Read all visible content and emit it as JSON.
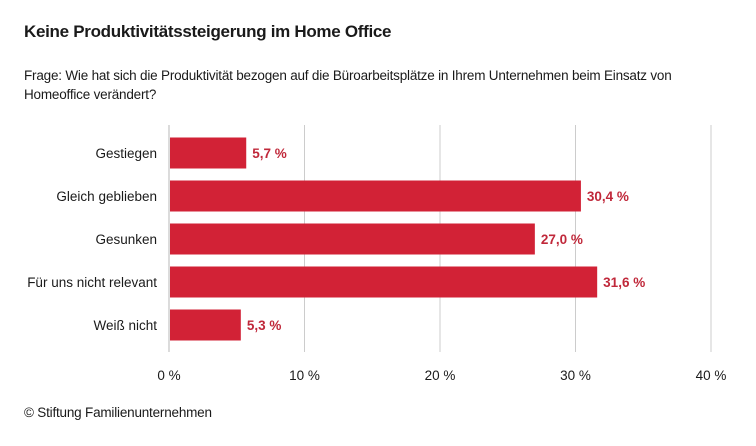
{
  "header": {
    "title": "Keine Produktivitätssteigerung im Home Office",
    "subtitle": "Frage: Wie hat sich die Produktivität bezogen auf die Büroarbeitsplätze in Ihrem Unternehmen beim Einsatz von Homeoffice verändert?"
  },
  "footer": {
    "source": "© Stiftung Familienunternehmen"
  },
  "colors": {
    "bar": "#d22236",
    "value_label": "#c0283a",
    "grid": "#cccccc"
  },
  "chart_data": {
    "type": "bar",
    "orientation": "horizontal",
    "title": "Keine Produktivitätssteigerung im Home Office",
    "categories": [
      "Gestiegen",
      "Gleich geblieben",
      "Gesunken",
      "Für uns nicht relevant",
      "Weiß nicht"
    ],
    "values": [
      5.7,
      30.4,
      27.0,
      31.6,
      5.3
    ],
    "value_labels": [
      "5,7 %",
      "30,4 %",
      "27,0 %",
      "31,6 %",
      "5,3 %"
    ],
    "xlim": [
      0,
      40
    ],
    "xticks": [
      0,
      10,
      20,
      30,
      40
    ],
    "xtick_labels": [
      "0 %",
      "10 %",
      "20 %",
      "30 %",
      "40 %"
    ],
    "grid": true,
    "xlabel": "",
    "ylabel": ""
  }
}
